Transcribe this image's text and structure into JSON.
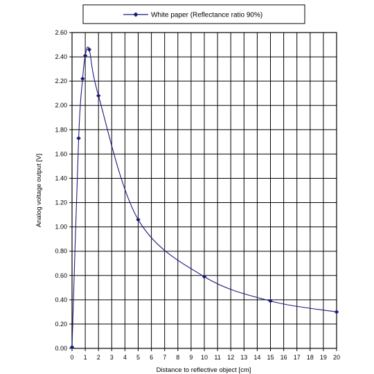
{
  "chart_data": {
    "type": "line",
    "xlabel": "Distance to reflective object [cm]",
    "ylabel": "Analog voltage output [V]",
    "xlim": [
      0,
      20
    ],
    "ylim": [
      0,
      2.6
    ],
    "x_ticks": [
      "0",
      "1",
      "2",
      "3",
      "4",
      "5",
      "6",
      "7",
      "8",
      "9",
      "10",
      "11",
      "12",
      "13",
      "14",
      "15",
      "16",
      "17",
      "18",
      "19",
      "20"
    ],
    "y_ticks": [
      "0.00",
      "0.20",
      "0.40",
      "0.60",
      "0.80",
      "1.00",
      "1.20",
      "1.40",
      "1.60",
      "1.80",
      "2.00",
      "2.20",
      "2.40",
      "2.60"
    ],
    "grid": true,
    "legend_position": "top-center",
    "series": [
      {
        "name": "White paper (Reflectance ratio 90%)",
        "color": "#1a1a7a",
        "marker": "diamond",
        "points": [
          {
            "x": 0,
            "y": 0.01
          },
          {
            "x": 0.5,
            "y": 1.73
          },
          {
            "x": 0.8,
            "y": 2.22
          },
          {
            "x": 1.0,
            "y": 2.41
          },
          {
            "x": 1.3,
            "y": 2.46
          },
          {
            "x": 2,
            "y": 2.08
          },
          {
            "x": 5,
            "y": 1.06
          },
          {
            "x": 10,
            "y": 0.59
          },
          {
            "x": 15,
            "y": 0.39
          },
          {
            "x": 20,
            "y": 0.3
          }
        ]
      }
    ]
  }
}
